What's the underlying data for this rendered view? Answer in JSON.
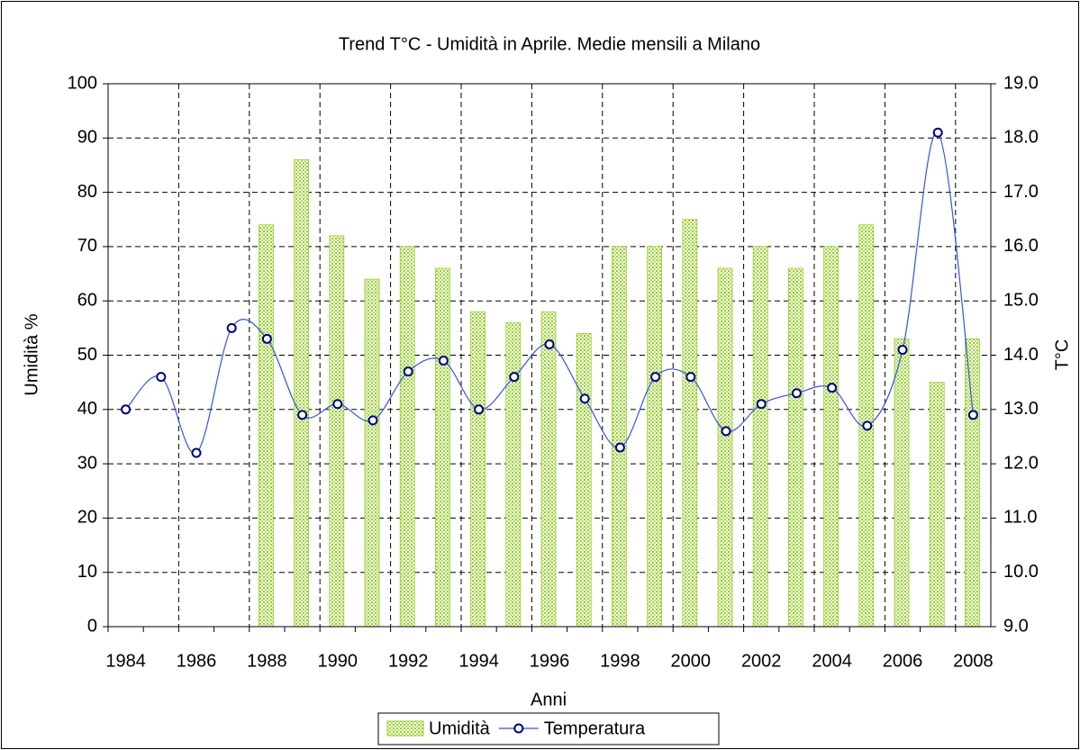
{
  "chart_data": {
    "type": "bar-line",
    "title": "Trend T°C - Umidità in Aprile. Medie mensili a Milano",
    "xlabel": "Anni",
    "ylabel": "Umidità %",
    "y2label": "T°C",
    "categories": [
      "1984",
      null,
      "1986",
      null,
      "1988",
      null,
      "1990",
      null,
      "1992",
      null,
      "1994",
      null,
      "1996",
      null,
      "1998",
      null,
      "2000",
      null,
      "2002",
      null,
      "2004",
      null,
      "2006",
      null,
      "2008"
    ],
    "series": [
      {
        "name": "Umidità",
        "type": "bar",
        "color": "#9acd32",
        "axis": "y",
        "values": [
          null,
          null,
          null,
          null,
          74,
          86,
          72,
          64,
          70,
          66,
          58,
          56,
          58,
          54,
          70,
          70,
          75,
          66,
          70,
          66,
          70,
          74,
          53,
          45,
          53
        ]
      },
      {
        "name": "Temperatura",
        "type": "line",
        "color": "#3355dd",
        "axis": "y2",
        "values": [
          13.0,
          13.6,
          12.2,
          14.5,
          14.3,
          12.9,
          13.1,
          12.8,
          13.7,
          13.9,
          13.0,
          13.6,
          14.2,
          13.2,
          12.3,
          13.6,
          13.6,
          12.6,
          13.1,
          13.3,
          13.4,
          12.7,
          14.1,
          18.1,
          12.9
        ]
      }
    ],
    "ylim": [
      0,
      100
    ],
    "yticks": [
      0,
      10,
      20,
      30,
      40,
      50,
      60,
      70,
      80,
      90,
      100
    ],
    "y2lim": [
      9,
      19
    ],
    "y2ticks": [
      {
        "value": 9,
        "label": "9.0"
      },
      {
        "value": 10,
        "label": "10.0"
      },
      {
        "value": 11,
        "label": "11.0"
      },
      {
        "value": 12,
        "label": "12.0"
      },
      {
        "value": 13,
        "label": "13.0"
      },
      {
        "value": 14,
        "label": "14.0"
      },
      {
        "value": 15,
        "label": "15.0"
      },
      {
        "value": 16,
        "label": "16.0"
      },
      {
        "value": 17,
        "label": "17.0"
      },
      {
        "value": 18,
        "label": "18.0"
      },
      {
        "value": 19,
        "label": "19.0"
      }
    ],
    "grid": true,
    "legend": "bottom"
  }
}
